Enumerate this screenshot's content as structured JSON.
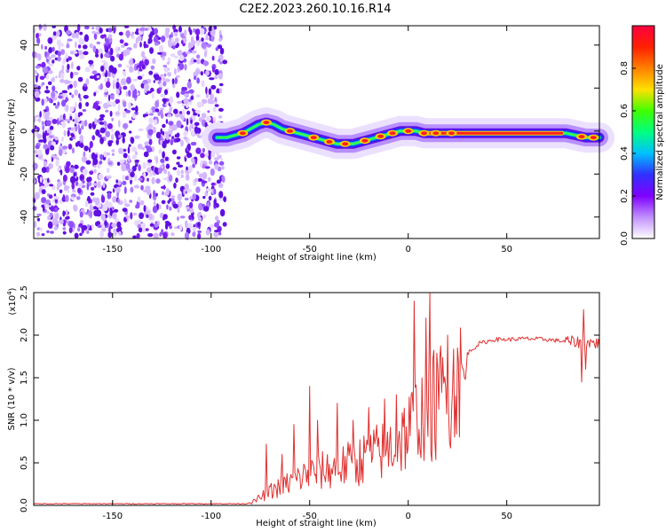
{
  "title": "C2E2.2023.260.10.16.R14",
  "chart_data": [
    {
      "type": "heatmap",
      "name": "spectrogram",
      "xlabel": "Height of straight line (km)",
      "ylabel": "Frequency (Hz)",
      "xlim": [
        -190,
        97
      ],
      "ylim": [
        -50,
        49
      ],
      "xticks": [
        -150,
        -100,
        -50,
        0,
        50
      ],
      "yticks": [
        -40,
        -20,
        0,
        20,
        40
      ],
      "noise_region_x": [
        -190,
        -93
      ],
      "signal_start_x": -95,
      "ridge": {
        "x": [
          -97,
          -92,
          -88,
          -84,
          -80,
          -76,
          -72,
          -68,
          -64,
          -60,
          -56,
          -52,
          -48,
          -44,
          -40,
          -36,
          -32,
          -28,
          -24,
          -20,
          -16,
          -12,
          -8,
          -4,
          0,
          4,
          8,
          12,
          16,
          20,
          30,
          40,
          50,
          60,
          70,
          80,
          85,
          90,
          97
        ],
        "y": [
          -3,
          -3,
          -2,
          -1,
          1,
          3,
          4,
          3,
          1,
          0,
          -1,
          -2,
          -3,
          -4,
          -5,
          -6,
          -6,
          -6,
          -5,
          -4,
          -3,
          -2,
          -1,
          0,
          0,
          0,
          -1,
          -1,
          -1,
          -1,
          -1,
          -1,
          -1,
          -1,
          -1,
          -1,
          -2,
          -3,
          -3
        ]
      }
    },
    {
      "type": "colorbar",
      "label": "Normalized spectral amplitude",
      "range": [
        0,
        1
      ],
      "ticks": [
        "0.0",
        "0.2",
        "0.4",
        "0.6",
        "0.8"
      ],
      "colors": [
        "#ffffff",
        "#c090ff",
        "#8000ff",
        "#3030ff",
        "#00c0ff",
        "#00ff80",
        "#40ff00",
        "#ffe000",
        "#ff8000",
        "#ff2000",
        "#ff0040"
      ]
    },
    {
      "type": "line",
      "name": "snr",
      "xlabel": "Height of straight line (km)",
      "ylabel": "SNR (10 * v/v)",
      "exponent_label": "(x10",
      "exponent_power": "4",
      "exponent_close": ")",
      "xlim": [
        -190,
        97
      ],
      "ylim": [
        0,
        2.5
      ],
      "xticks": [
        -150,
        -100,
        -50,
        0,
        50
      ],
      "yticks": [
        "0.0",
        "0.5",
        "1.0",
        "1.5",
        "2.0",
        "2.5"
      ],
      "line_color": "#e03030",
      "envelope": {
        "x": [
          -190,
          -100,
          -82,
          -78,
          -70,
          -62,
          -56,
          -50,
          -42,
          -34,
          -26,
          -18,
          -10,
          -4,
          0,
          4,
          10,
          16,
          22,
          28,
          36,
          44,
          52,
          60,
          70,
          78,
          84,
          90,
          97
        ],
        "y": [
          0.02,
          0.02,
          0.02,
          0.06,
          0.2,
          0.3,
          0.38,
          0.45,
          0.5,
          0.55,
          0.62,
          0.72,
          0.82,
          0.95,
          1.05,
          1.2,
          1.35,
          1.5,
          1.62,
          1.75,
          1.9,
          1.95,
          1.95,
          1.96,
          1.95,
          1.93,
          1.92,
          1.92,
          1.9
        ]
      },
      "spikes": {
        "x": [
          -72,
          -64,
          -58,
          -50,
          -46,
          -36,
          -28,
          -20,
          -12,
          -6,
          3,
          5,
          9,
          11,
          15,
          20,
          25,
          88,
          89,
          90
        ],
        "y": [
          0.72,
          0.6,
          0.95,
          1.4,
          1.0,
          1.2,
          1.0,
          1.15,
          1.25,
          1.3,
          2.4,
          0.6,
          2.2,
          2.5,
          1.6,
          2.0,
          1.85,
          1.45,
          2.3,
          1.6
        ]
      }
    }
  ]
}
